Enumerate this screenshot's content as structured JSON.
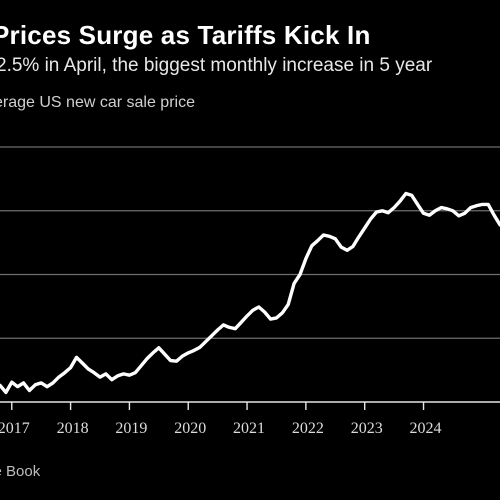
{
  "header": {
    "title": "Prices Surge as Tariffs Kick In",
    "subtitle": "2.5% in April, the biggest monthly increase in 5 year",
    "unit": "erage US new car sale price"
  },
  "footer": {
    "source": "se Book"
  },
  "colors": {
    "background": "#000000",
    "line": "#ffffff",
    "grid": "#6e6e6e",
    "text": "#ffffff"
  },
  "chart_data": {
    "type": "line",
    "title": "Prices Surge as Tariffs Kick In",
    "subtitle": "2.5% in April, the biggest monthly increase in 5 year",
    "ylabel": "erage US new car sale price",
    "xlabel": "",
    "x_ticks": [
      "2017",
      "2018",
      "2019",
      "2020",
      "2021",
      "2022",
      "2023",
      "2024"
    ],
    "xlim": [
      2016.8,
      2025.3
    ],
    "ylim": [
      0,
      4
    ],
    "grid": true,
    "legend": "none",
    "series": [
      {
        "x": [
          2016.8,
          2016.9,
          2017.0,
          2017.1,
          2017.2,
          2017.3,
          2017.4,
          2017.5,
          2017.6,
          2017.7,
          2017.8,
          2017.9,
          2018.0,
          2018.1,
          2018.2,
          2018.3,
          2018.4,
          2018.5,
          2018.6,
          2018.7,
          2018.8,
          2018.9,
          2019.0,
          2019.1,
          2019.2,
          2019.3,
          2019.4,
          2019.5,
          2019.6,
          2019.7,
          2019.8,
          2019.9,
          2020.0,
          2020.1,
          2020.2,
          2020.3,
          2020.4,
          2020.5,
          2020.6,
          2020.7,
          2020.8,
          2020.9,
          2021.0,
          2021.1,
          2021.2,
          2021.3,
          2021.4,
          2021.5,
          2021.6,
          2021.7,
          2021.8,
          2021.9,
          2022.0,
          2022.1,
          2022.2,
          2022.3,
          2022.4,
          2022.5,
          2022.6,
          2022.7,
          2022.8,
          2022.9,
          2023.0,
          2023.1,
          2023.2,
          2023.3,
          2023.4,
          2023.5,
          2023.6,
          2023.7,
          2023.8,
          2023.9,
          2024.0,
          2024.1,
          2024.2,
          2024.3,
          2024.4,
          2024.5,
          2024.6,
          2024.7,
          2024.8,
          2024.9,
          2025.0,
          2025.1,
          2025.2,
          2025.3
        ],
        "y": [
          0.26,
          0.15,
          0.31,
          0.24,
          0.3,
          0.18,
          0.27,
          0.3,
          0.24,
          0.3,
          0.39,
          0.46,
          0.54,
          0.7,
          0.61,
          0.52,
          0.46,
          0.39,
          0.44,
          0.35,
          0.41,
          0.44,
          0.42,
          0.46,
          0.57,
          0.68,
          0.77,
          0.85,
          0.75,
          0.65,
          0.64,
          0.72,
          0.77,
          0.81,
          0.86,
          0.95,
          1.04,
          1.13,
          1.21,
          1.17,
          1.15,
          1.25,
          1.35,
          1.44,
          1.49,
          1.41,
          1.3,
          1.32,
          1.4,
          1.53,
          1.86,
          2.0,
          2.25,
          2.45,
          2.53,
          2.62,
          2.6,
          2.56,
          2.43,
          2.38,
          2.44,
          2.59,
          2.73,
          2.87,
          2.98,
          3.0,
          2.97,
          3.05,
          3.15,
          3.27,
          3.24,
          3.1,
          2.96,
          2.93,
          3.0,
          3.05,
          3.03,
          3.0,
          2.92,
          2.96,
          3.05,
          3.08,
          3.1,
          3.1,
          2.93,
          2.78
        ]
      }
    ]
  }
}
